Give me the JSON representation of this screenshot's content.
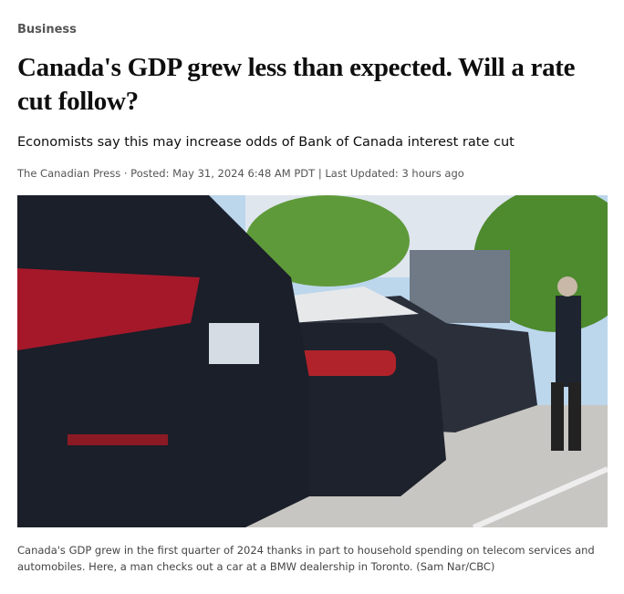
{
  "section": "Business",
  "headline": "Canada's GDP grew less than expected. Will a rate cut follow?",
  "subheadline": "Economists say this may increase odds of Bank of Canada interest rate cut",
  "byline": "The Canadian Press · Posted: May 31, 2024 6:48 AM PDT | Last Updated: 3 hours ago",
  "caption": "Canada's GDP grew in the first quarter of 2024 thanks in part to household spending on telecom services and automobiles. Here, a man checks out a car at a BMW dealership in Toronto. (Sam Nar/CBC)"
}
